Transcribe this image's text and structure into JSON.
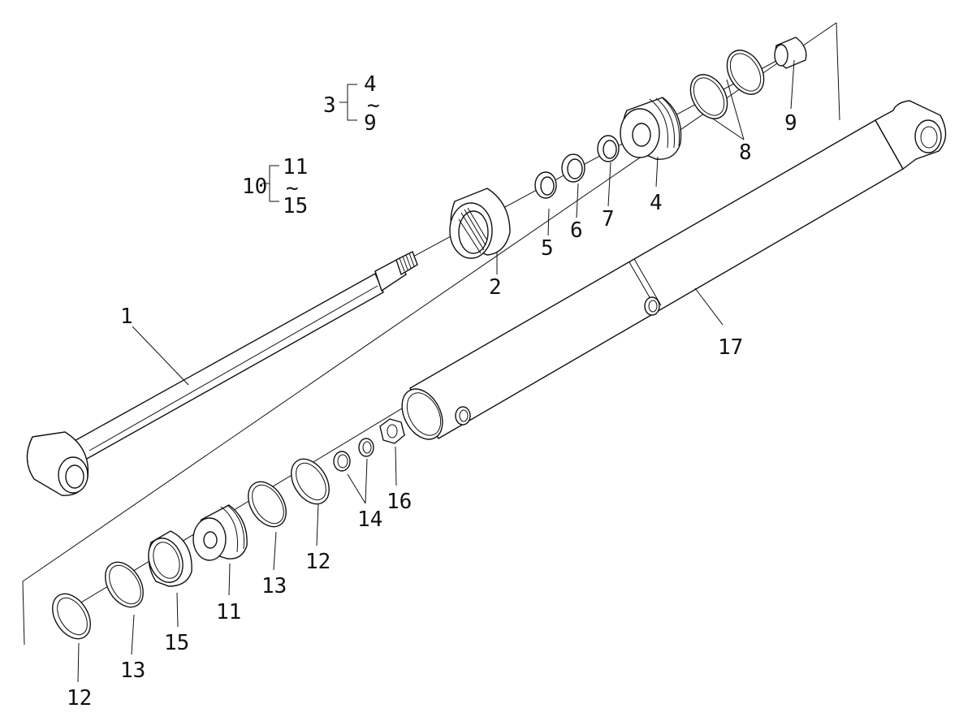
{
  "groups": [
    {
      "id": "3",
      "from": "4",
      "tilde": "~",
      "to": "9"
    },
    {
      "id": "10",
      "from": "11",
      "tilde": "~",
      "to": "15"
    }
  ],
  "labels": {
    "p1": "1",
    "p2": "2",
    "p4": "4",
    "p5": "5",
    "p6": "6",
    "p7": "7",
    "p8": "8",
    "p9": "9",
    "p11": "11",
    "p12a": "12",
    "p12b": "12",
    "p13a": "13",
    "p13b": "13",
    "p14": "14",
    "p15": "15",
    "p16": "16",
    "p17": "17"
  }
}
